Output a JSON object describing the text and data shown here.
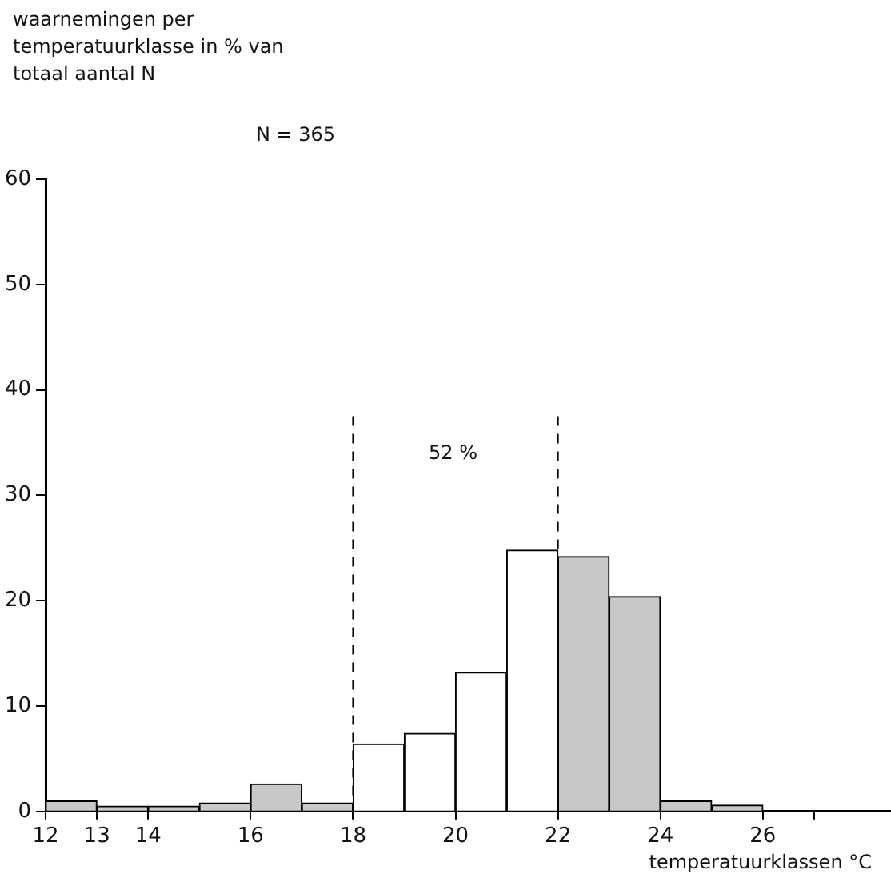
{
  "chart_data": {
    "type": "histogram",
    "ylabel": "waarnemingen per temperatuurklasse in % van totaal aantal N",
    "xlabel": "temperatuurklassen °C",
    "bins": [
      12,
      13,
      14,
      15,
      16,
      17,
      18,
      19,
      20,
      21,
      22,
      23,
      24,
      25,
      26
    ],
    "values": [
      1.0,
      0.5,
      0.5,
      0.8,
      2.6,
      0.8,
      6.4,
      7.4,
      13.2,
      24.8,
      24.2,
      20.4,
      1.0,
      0.6
    ],
    "colors": [
      "#c8c8c8",
      "#c8c8c8",
      "#c8c8c8",
      "#c8c8c8",
      "#c8c8c8",
      "#c8c8c8",
      "#ffffff",
      "#ffffff",
      "#ffffff",
      "#ffffff",
      "#c8c8c8",
      "#c8c8c8",
      "#c8c8c8",
      "#c8c8c8"
    ],
    "xlim": [
      12,
      28.5
    ],
    "xticks": [
      12,
      13,
      14,
      16,
      18,
      20,
      22,
      24,
      26,
      {
        "value": 27,
        "label": null
      }
    ],
    "ylim": [
      0,
      60
    ],
    "yticks": [
      0,
      10,
      20,
      30,
      40,
      50,
      60
    ],
    "ref_lines": [
      {
        "axis": "x",
        "value": 18,
        "line_style": "dashed",
        "color": "#000000"
      },
      {
        "axis": "x",
        "value": 22,
        "line_style": "dashed",
        "color": "#000000"
      }
    ],
    "annotations": [
      "N = 365",
      "52 %"
    ],
    "grid": false,
    "legend": false
  }
}
